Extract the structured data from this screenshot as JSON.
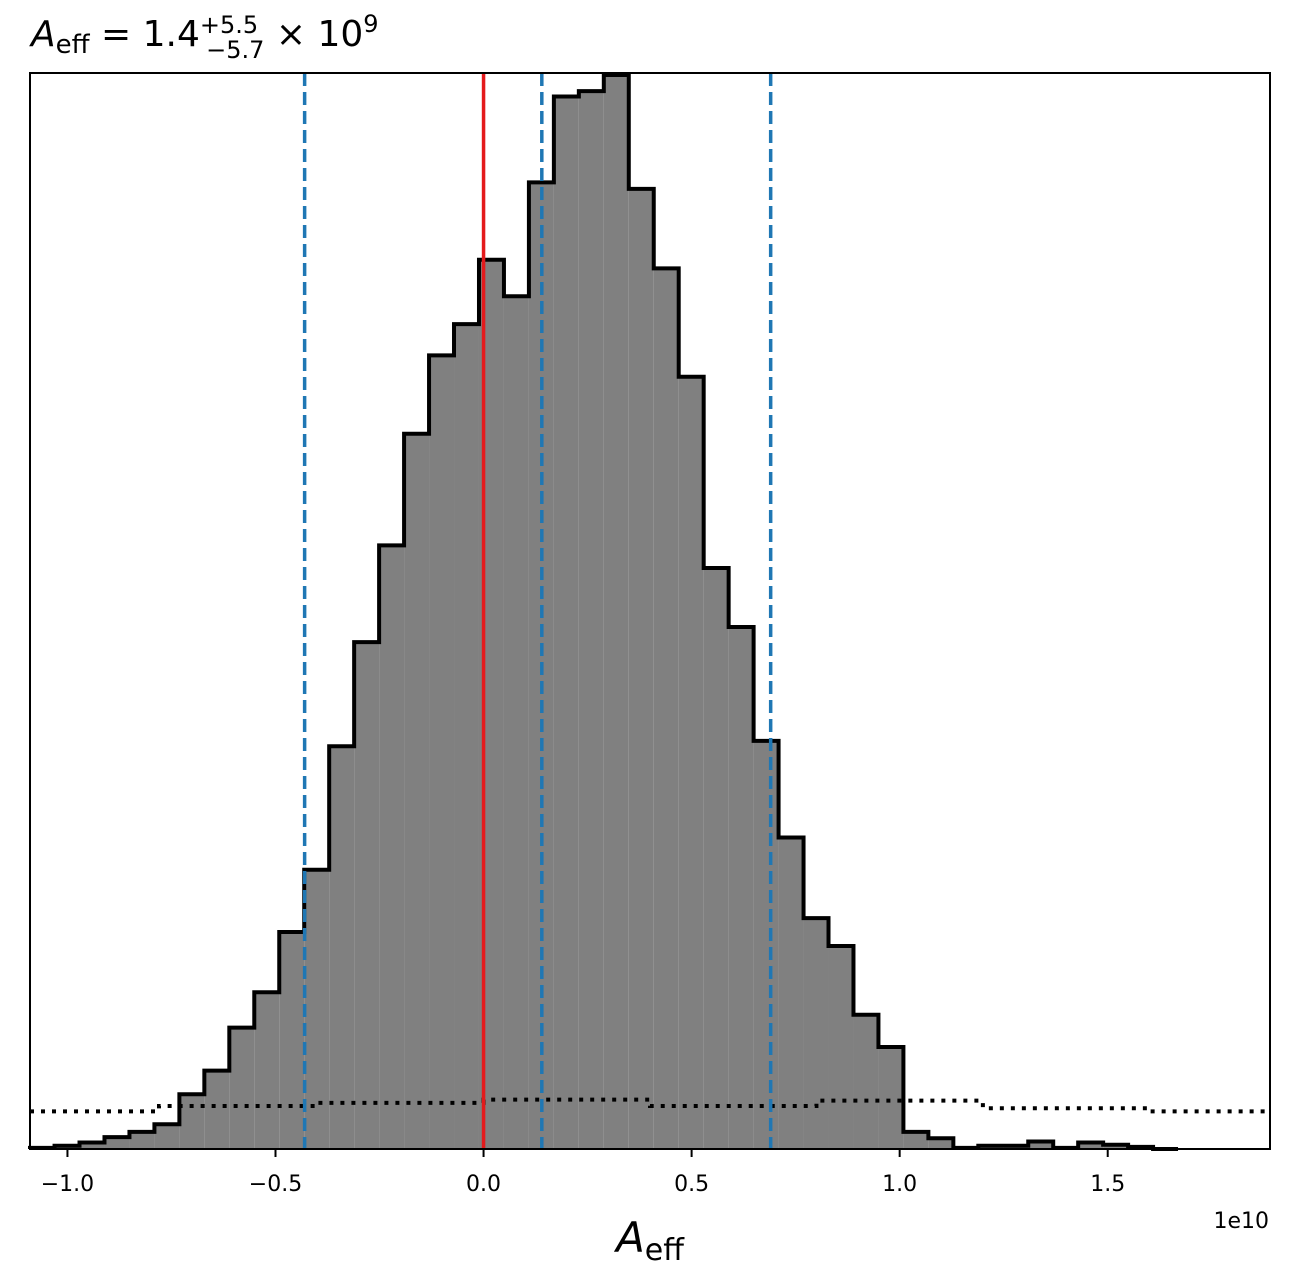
{
  "chart_data": {
    "type": "histogram",
    "title": {
      "symbol": "A",
      "subscript": "eff",
      "text": " = 1.4",
      "upper": "+5.5",
      "lower": "−5.7",
      "times": " × 10",
      "power": "9"
    },
    "xlabel": {
      "symbol": "A",
      "subscript": "eff"
    },
    "x_offset_label": "1e10",
    "xlim": [
      -10900000000.0,
      18900000000.0
    ],
    "ylim": [
      0,
      1.0
    ],
    "xticks": [
      -10000000000.0,
      -5000000000.0,
      0.0,
      5000000000.0,
      10000000000.0,
      15000000000.0
    ],
    "xtick_labels": [
      "−1.0",
      "−0.5",
      "0.0",
      "0.5",
      "1.0",
      "1.5"
    ],
    "yticks_visible": false,
    "grid": false,
    "bin_edges": [
      -10900000000.0,
      -10310000000.0,
      -9710000000.0,
      -9110000000.0,
      -8510000000.0,
      -7910000000.0,
      -7310000000.0,
      -6710000000.0,
      -6110000000.0,
      -5510000000.0,
      -4910000000.0,
      -4310000000.0,
      -3710000000.0,
      -3110000000.0,
      -2510000000.0,
      -1910000000.0,
      -1310000000.0,
      -710000000.0,
      -110000000.0,
      490000000.0,
      1090000000.0,
      1690000000.0,
      2290000000.0,
      2890000000.0,
      3490000000.0,
      4090000000.0,
      4690000000.0,
      5290000000.0,
      5890000000.0,
      6490000000.0,
      7090000000.0,
      7690000000.0,
      8290000000.0,
      8890000000.0,
      9490000000.0,
      10090000000.0,
      10690000000.0,
      11290000000.0,
      11890000000.0,
      12490000000.0,
      13090000000.0,
      13690000000.0,
      14290000000.0,
      14890000000.0,
      15490000000.0,
      16090000000.0,
      16690000000.0
    ],
    "counts": [
      0.001,
      0.003,
      0.006,
      0.011,
      0.016,
      0.023,
      0.051,
      0.073,
      0.113,
      0.146,
      0.202,
      0.26,
      0.375,
      0.472,
      0.562,
      0.666,
      0.739,
      0.768,
      0.828,
      0.794,
      0.9,
      0.98,
      0.985,
      1.0,
      0.894,
      0.82,
      0.719,
      0.541,
      0.486,
      0.38,
      0.29,
      0.215,
      0.189,
      0.125,
      0.095,
      0.016,
      0.01,
      0.001,
      0.003,
      0.003,
      0.007,
      0.001,
      0.006,
      0.004,
      0.002,
      0.0
    ],
    "prior": {
      "style": "dotted",
      "color": "#000000",
      "steps": [
        {
          "x0": -10900000000.0,
          "x1": -7800000000.0,
          "y": 0.035
        },
        {
          "x0": -7800000000.0,
          "x1": -4000000000.0,
          "y": 0.04
        },
        {
          "x0": -4000000000.0,
          "x1": 0.0,
          "y": 0.043
        },
        {
          "x0": 0.0,
          "x1": 4000000000.0,
          "y": 0.046
        },
        {
          "x0": 4000000000.0,
          "x1": 8000000000.0,
          "y": 0.04
        },
        {
          "x0": 8000000000.0,
          "x1": 12000000000.0,
          "y": 0.045
        },
        {
          "x0": 12000000000.0,
          "x1": 16000000000.0,
          "y": 0.038
        },
        {
          "x0": 16000000000.0,
          "x1": 18900000000.0,
          "y": 0.035
        }
      ]
    },
    "vertical_lines": [
      {
        "name": "true-value-line",
        "x": 0.0,
        "color": "#e41a1c",
        "style": "solid"
      },
      {
        "name": "lower-quantile-line",
        "x": -4300000000.0,
        "color": "#1f77b4",
        "style": "dashed"
      },
      {
        "name": "median-line",
        "x": 1400000000.0,
        "color": "#1f77b4",
        "style": "dashed"
      },
      {
        "name": "upper-quantile-line",
        "x": 6900000000.0,
        "color": "#1f77b4",
        "style": "dashed"
      }
    ],
    "colors": {
      "fill": "#808080",
      "edge": "#000000",
      "truth": "#e41a1c",
      "quantile": "#1f77b4"
    }
  }
}
